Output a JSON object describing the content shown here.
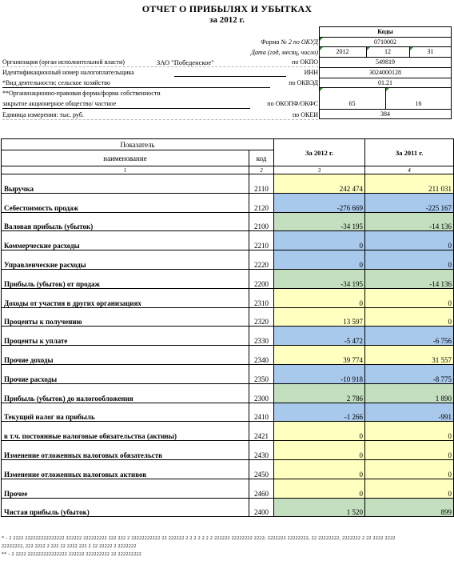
{
  "header": {
    "title": "ОТЧЕТ О ПРИБЫЛЯХ И УБЫТКАХ",
    "period": "за  2012 г."
  },
  "codes": {
    "caption": "Коды",
    "form_label": "Форма № 2 по ОКУД",
    "form_value": "0710002",
    "date_label": "Дата (год, месяц, число)",
    "date_year": "2012",
    "date_month": "12",
    "date_day": "31",
    "org_label": "Организация (орган исполнительной власти)",
    "org_name": "ЗАО \"Победенское\"",
    "okpo_label": "по ОКПО",
    "okpo_value": "549819",
    "inn_prefix": "Идентификационный номер налогоплательщика",
    "inn_label": "ИНН",
    "inn_value": "3024000128",
    "activity_label": "*Вид деятельности: сельское хозяйство",
    "okved_label": "по ОКВЭД",
    "okved_value": "01.21",
    "legal_form_label": "**Организационно-правовая форма/форма собственности",
    "legal_form_value": "закрытое акционерное общество/ частное",
    "okopf_label": "по ОКОПФ/ОКФС",
    "okopf_value": "65",
    "okfs_value": "16",
    "unit_label": "Единица измерения: тыс. руб.",
    "okei_label": "по ОКЕИ",
    "okei_value": "384"
  },
  "table": {
    "header_indicator": "Показатель",
    "header_name": "наименование",
    "header_code": "код",
    "header_2012": "За 2012 г.",
    "header_2011": "За 2011 г.",
    "num_1": "1",
    "num_2": "2",
    "num_3": "3",
    "num_4": "4",
    "rows": [
      {
        "name": "Выручка",
        "code": "2110",
        "v2012": "242 474",
        "v2011": "211 031",
        "color": "yellow",
        "indent": 0
      },
      {
        "name": "Себестоимость продаж",
        "code": "2120",
        "v2012": "-276 669",
        "v2011": "-225 167",
        "color": "blue",
        "indent": 0
      },
      {
        "name": "Валовая прибыль (убыток)",
        "code": "2100",
        "v2012": "-34 195",
        "v2011": "-14 136",
        "color": "green",
        "indent": 0
      },
      {
        "name": "Коммерческие расходы",
        "code": "2210",
        "v2012": "0",
        "v2011": "0",
        "color": "blue",
        "indent": 0
      },
      {
        "name": "Управленческие расходы",
        "code": "2220",
        "v2012": "0",
        "v2011": "0",
        "color": "blue",
        "indent": 0
      },
      {
        "name": "Прибыль (убыток) от продаж",
        "code": "2200",
        "v2012": "-34 195",
        "v2011": "-14 136",
        "color": "green",
        "indent": 8
      },
      {
        "name": "Доходы от участия в других организациях",
        "code": "2310",
        "v2012": "0",
        "v2011": "0",
        "color": "yellow",
        "indent": 0
      },
      {
        "name": "Проценты к получению",
        "code": "2320",
        "v2012": "13 597",
        "v2011": "0",
        "color": "yellow",
        "indent": 0
      },
      {
        "name": "Проценты к уплате",
        "code": "2330",
        "v2012": "-5 472",
        "v2011": "-6 756",
        "color": "blue",
        "indent": 0
      },
      {
        "name": "Прочие доходы",
        "code": "2340",
        "v2012": "39 774",
        "v2011": "31 557",
        "color": "yellow",
        "indent": 0
      },
      {
        "name": "Прочие расходы",
        "code": "2350",
        "v2012": "-10 918",
        "v2011": "-8 775",
        "color": "blue",
        "indent": 0
      },
      {
        "name": "Прибыль (убыток) до налогообложения",
        "code": "2300",
        "v2012": "2 786",
        "v2011": "1 890",
        "color": "green",
        "indent": 8
      },
      {
        "name": "Текущий налог на прибыль",
        "code": "2410",
        "v2012": "-1 266",
        "v2011": "-991",
        "color": "blue",
        "indent": 0
      },
      {
        "name": "в т.ч. постоянные налоговые обязательства (активы)",
        "code": "2421",
        "v2012": "0",
        "v2011": "0",
        "color": "yellow",
        "indent": 16
      },
      {
        "name": "Изменение отложенных налоговых обязательств",
        "code": "2430",
        "v2012": "0",
        "v2011": "0",
        "color": "yellow",
        "indent": 0
      },
      {
        "name": "Изменение отложенных налоговых активов",
        "code": "2450",
        "v2012": "0",
        "v2011": "0",
        "color": "yellow",
        "indent": 0
      },
      {
        "name": "Прочее",
        "code": "2460",
        "v2012": "0",
        "v2011": "0",
        "color": "yellow",
        "indent": 0
      },
      {
        "name": "Чистая прибыль (убыток)",
        "code": "2400",
        "v2012": "1 520",
        "v2011": "899",
        "color": "green",
        "indent": 0
      }
    ]
  },
  "footnotes": {
    "line1": "* - 2 2222 222222222222222 222222 222222222 222 222 2 22222222222 22 222222 2 2 2 2 2 2 2 222222 22222222 2222; 2222222 22222222, 22 22222222, 2222222 2 22 2222 2222",
    "line2": "22222222, 222 2222 2 222 22 2222 222 2 22 22222 2 2222222",
    "line3": "** - 2 2222 222222222222222 222222 222222222 22 222222222"
  }
}
